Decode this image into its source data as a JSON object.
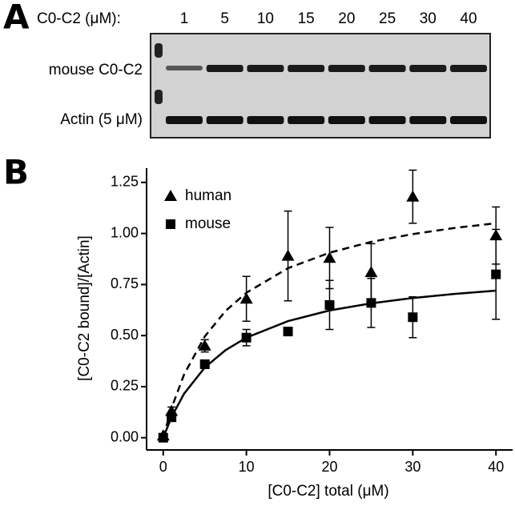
{
  "panel_a": {
    "label": "A",
    "concentration_label": "C0-C2 (μM):",
    "concentrations": [
      1,
      5,
      10,
      15,
      20,
      25,
      30,
      40
    ],
    "rows": [
      "mouse C0-C2",
      "Actin (5 μM)"
    ]
  },
  "chart_data": {
    "type": "scatter",
    "panel_label": "B",
    "x_label": "[C0-C2] total (μM)",
    "y_label": "[C0-C2 bound]/[Actin]",
    "xlim": [
      -2,
      42
    ],
    "ylim": [
      -0.06,
      1.32
    ],
    "xticks": [
      0,
      10,
      20,
      30,
      40
    ],
    "yticks": [
      {
        "value": 0,
        "label": "0.00"
      },
      {
        "value": 0.25,
        "label": "0.25"
      },
      {
        "value": 0.5,
        "label": "0.50"
      },
      {
        "value": 0.75,
        "label": "0.75"
      },
      {
        "value": 1,
        "label": "1.00"
      },
      {
        "value": 1.25,
        "label": "1.25"
      }
    ],
    "legend": "upper left",
    "series": [
      {
        "name": "human",
        "marker": "triangle",
        "color": "#000000",
        "x": [
          0,
          1,
          5,
          10,
          15,
          20,
          25,
          30,
          40
        ],
        "values": [
          0.01,
          0.13,
          0.45,
          0.68,
          0.89,
          0.88,
          0.81,
          1.18,
          0.99
        ],
        "errors": [
          0.01,
          0.02,
          0.03,
          0.11,
          0.22,
          0.15,
          0.14,
          0.13,
          0.14
        ],
        "fit": {
          "dashed": true,
          "x": [
            0,
            1,
            2.5,
            5,
            7.5,
            10,
            15,
            20,
            25,
            30,
            35,
            40
          ],
          "values": [
            0,
            0.145,
            0.309,
            0.496,
            0.621,
            0.71,
            0.83,
            0.906,
            0.959,
            0.997,
            1.027,
            1.05
          ]
        }
      },
      {
        "name": "mouse",
        "marker": "square",
        "color": "#000000",
        "x": [
          0,
          1,
          5,
          10,
          15,
          20,
          25,
          30,
          40
        ],
        "values": [
          0.0,
          0.1,
          0.36,
          0.49,
          0.52,
          0.65,
          0.66,
          0.59,
          0.8
        ],
        "errors": [
          0.01,
          0.02,
          0.02,
          0.04,
          0.02,
          0.12,
          0.12,
          0.1,
          0.22
        ],
        "fit": {
          "dashed": false,
          "x": [
            0,
            1,
            2.5,
            5,
            7.5,
            10,
            15,
            20,
            25,
            30,
            35,
            40
          ],
          "values": [
            0,
            0.101,
            0.215,
            0.344,
            0.429,
            0.49,
            0.571,
            0.623,
            0.658,
            0.684,
            0.704,
            0.72
          ]
        }
      }
    ]
  }
}
